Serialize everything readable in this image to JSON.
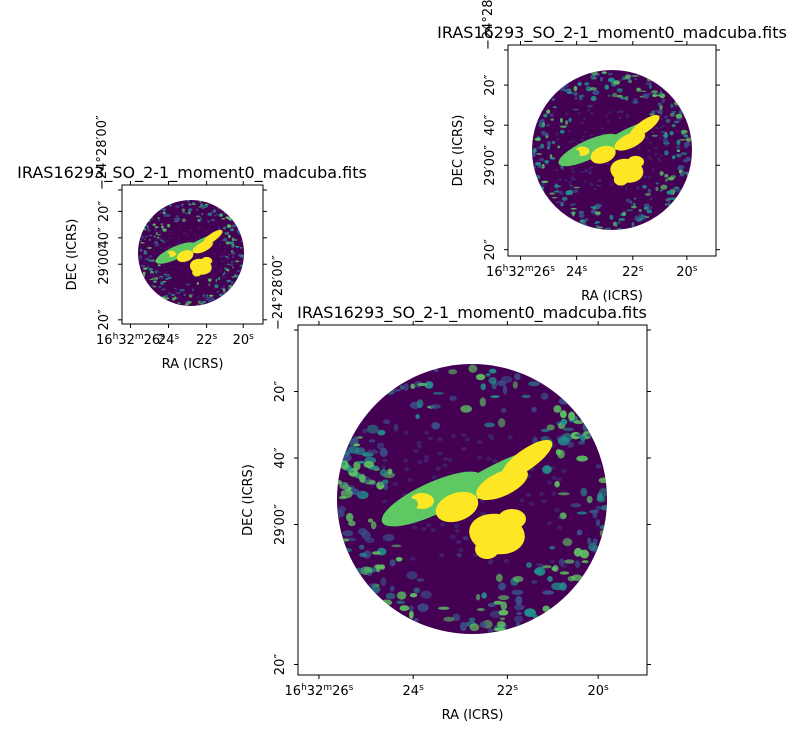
{
  "colors": {
    "background": "#ffffff",
    "disk_base": "#440154",
    "viridis": [
      "#440154",
      "#3b528b",
      "#21918c",
      "#5ec962",
      "#fde725"
    ]
  },
  "chart_data": [
    {
      "type": "heatmap",
      "title": "IRAS16293_SO_2-1_moment0_madcuba.fits",
      "xlabel": "RA (ICRS)",
      "ylabel": "DEC (ICRS)",
      "x_ticks": [
        {
          "h": "16",
          "m": "32",
          "s": "26"
        },
        {
          "h": "",
          "m": "",
          "s": "24"
        },
        {
          "h": "",
          "m": "",
          "s": "22"
        },
        {
          "h": "",
          "m": "",
          "s": "20"
        }
      ],
      "y_ticks": [
        "−24°28′00″",
        "20″",
        "40″",
        "29′00″",
        "20″"
      ],
      "colormap": "viridis",
      "description": "small"
    },
    {
      "type": "heatmap",
      "title": "IRAS16293_SO_2-1_moment0_madcuba.fits",
      "xlabel": "RA (ICRS)",
      "ylabel": "DEC (ICRS)",
      "x_ticks": [
        {
          "h": "16",
          "m": "32",
          "s": "26"
        },
        {
          "h": "",
          "m": "",
          "s": "24"
        },
        {
          "h": "",
          "m": "",
          "s": "22"
        },
        {
          "h": "",
          "m": "",
          "s": "20"
        }
      ],
      "y_ticks": [
        "−24°28′00″",
        "20″",
        "40″",
        "29′00″",
        "20″"
      ],
      "colormap": "viridis"
    },
    {
      "type": "heatmap",
      "title": "IRAS16293_SO_2-1_moment0_madcuba.fits",
      "xlabel": "RA (ICRS)",
      "ylabel": "DEC (ICRS)",
      "x_ticks": [
        {
          "h": "16",
          "m": "32",
          "s": "26"
        },
        {
          "h": "",
          "m": "",
          "s": "24"
        },
        {
          "h": "",
          "m": "",
          "s": "22"
        },
        {
          "h": "",
          "m": "",
          "s": "20"
        }
      ],
      "y_ticks": [
        "−24°28′00″",
        "20″",
        "40″",
        "29′00″",
        "20″"
      ],
      "colormap": "viridis"
    }
  ]
}
